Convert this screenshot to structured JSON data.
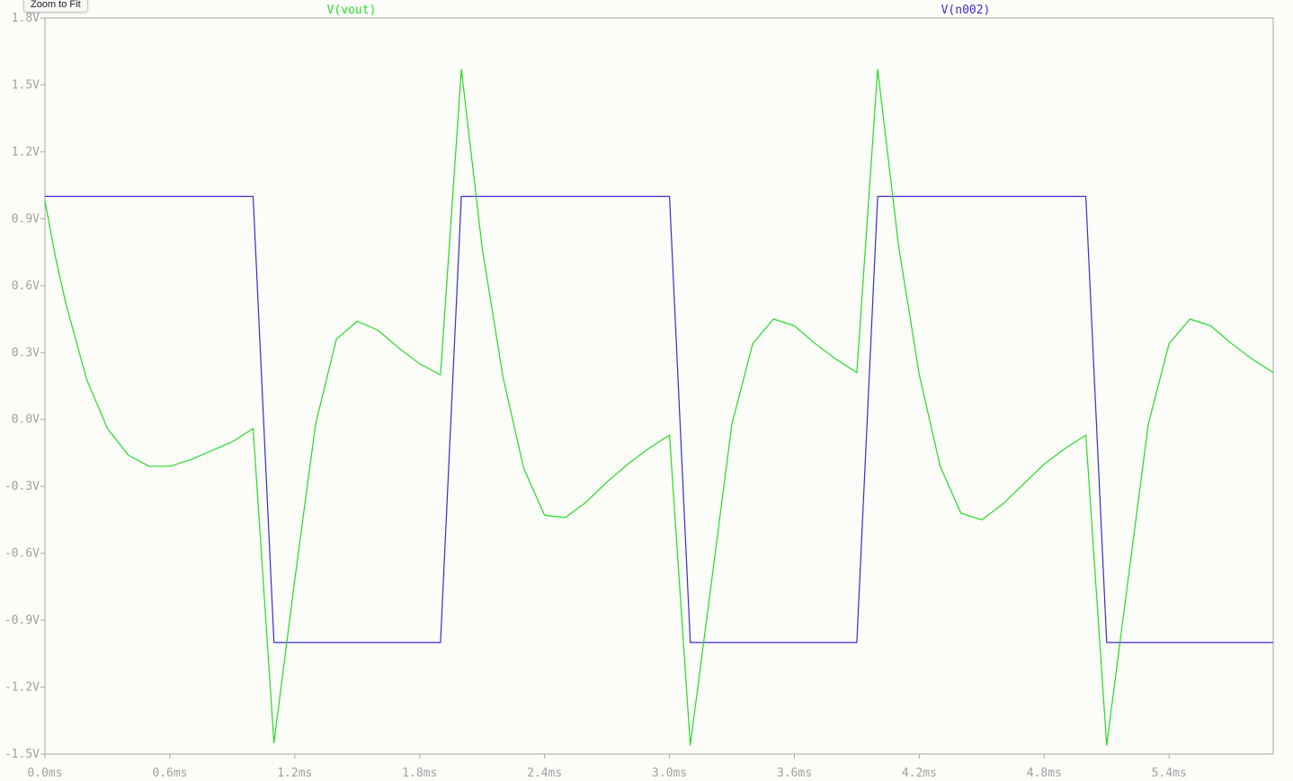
{
  "toolbar": {
    "zoom_label": "Zoom to Fit"
  },
  "chart_data": {
    "type": "line",
    "xlabel": "",
    "ylabel": "",
    "xlim": [
      0,
      5.9
    ],
    "ylim": [
      -1.5,
      1.8
    ],
    "x_ticks": [
      0.0,
      0.6,
      1.2,
      1.8,
      2.4,
      3.0,
      3.6,
      4.2,
      4.8,
      5.4
    ],
    "x_tick_labels": [
      "0.0ms",
      "0.6ms",
      "1.2ms",
      "1.8ms",
      "2.4ms",
      "3.0ms",
      "3.6ms",
      "4.2ms",
      "4.8ms",
      "5.4ms"
    ],
    "y_ticks": [
      1.8,
      1.5,
      1.2,
      0.9,
      0.6,
      0.3,
      0.0,
      -0.3,
      -0.6,
      -0.9,
      -1.2,
      -1.5
    ],
    "y_tick_labels": [
      "1.8V",
      "1.5V",
      "1.2V",
      "0.9V",
      "0.6V",
      "0.3V",
      "0.0V",
      "-0.3V",
      "-0.6V",
      "-0.9V",
      "-1.2V",
      "-1.5V"
    ],
    "grid": false,
    "series": [
      {
        "name": "V(vout)",
        "color": "#22dd22",
        "x": [
          0.0,
          0.05,
          0.1,
          0.2,
          0.3,
          0.4,
          0.5,
          0.6,
          0.7,
          0.8,
          0.9,
          1.0,
          1.1,
          1.2,
          1.3,
          1.4,
          1.5,
          1.6,
          1.7,
          1.8,
          1.9,
          2.0,
          2.1,
          2.2,
          2.3,
          2.4,
          2.5,
          2.6,
          2.7,
          2.8,
          2.9,
          3.0,
          3.1,
          3.2,
          3.3,
          3.4,
          3.5,
          3.6,
          3.7,
          3.8,
          3.9,
          4.0,
          4.1,
          4.2,
          4.3,
          4.4,
          4.5,
          4.6,
          4.7,
          4.8,
          4.9,
          5.0,
          5.1,
          5.2,
          5.3,
          5.4,
          5.5,
          5.6,
          5.7,
          5.8,
          5.9
        ],
        "y": [
          0.98,
          0.73,
          0.52,
          0.18,
          -0.04,
          -0.16,
          -0.21,
          -0.21,
          -0.18,
          -0.14,
          -0.1,
          -0.04,
          -1.45,
          -0.72,
          -0.02,
          0.36,
          0.44,
          0.4,
          0.32,
          0.25,
          0.2,
          1.57,
          0.77,
          0.19,
          -0.22,
          -0.43,
          -0.44,
          -0.37,
          -0.28,
          -0.2,
          -0.13,
          -0.07,
          -1.46,
          -0.74,
          -0.02,
          0.34,
          0.45,
          0.42,
          0.34,
          0.27,
          0.21,
          1.57,
          0.78,
          0.2,
          -0.21,
          -0.42,
          -0.45,
          -0.38,
          -0.29,
          -0.2,
          -0.13,
          -0.07,
          -1.46,
          -0.74,
          -0.02,
          0.34,
          0.45,
          0.42,
          0.34,
          0.27,
          0.21
        ]
      },
      {
        "name": "V(n002)",
        "color": "#3a2dcc",
        "x": [
          0.0,
          1.0,
          1.1,
          1.9,
          2.0,
          3.0,
          3.1,
          3.9,
          4.0,
          5.0,
          5.1,
          5.9
        ],
        "y": [
          1.0,
          1.0,
          -1.0,
          -1.0,
          1.0,
          1.0,
          -1.0,
          -1.0,
          1.0,
          1.0,
          -1.0,
          -1.0
        ]
      }
    ]
  }
}
